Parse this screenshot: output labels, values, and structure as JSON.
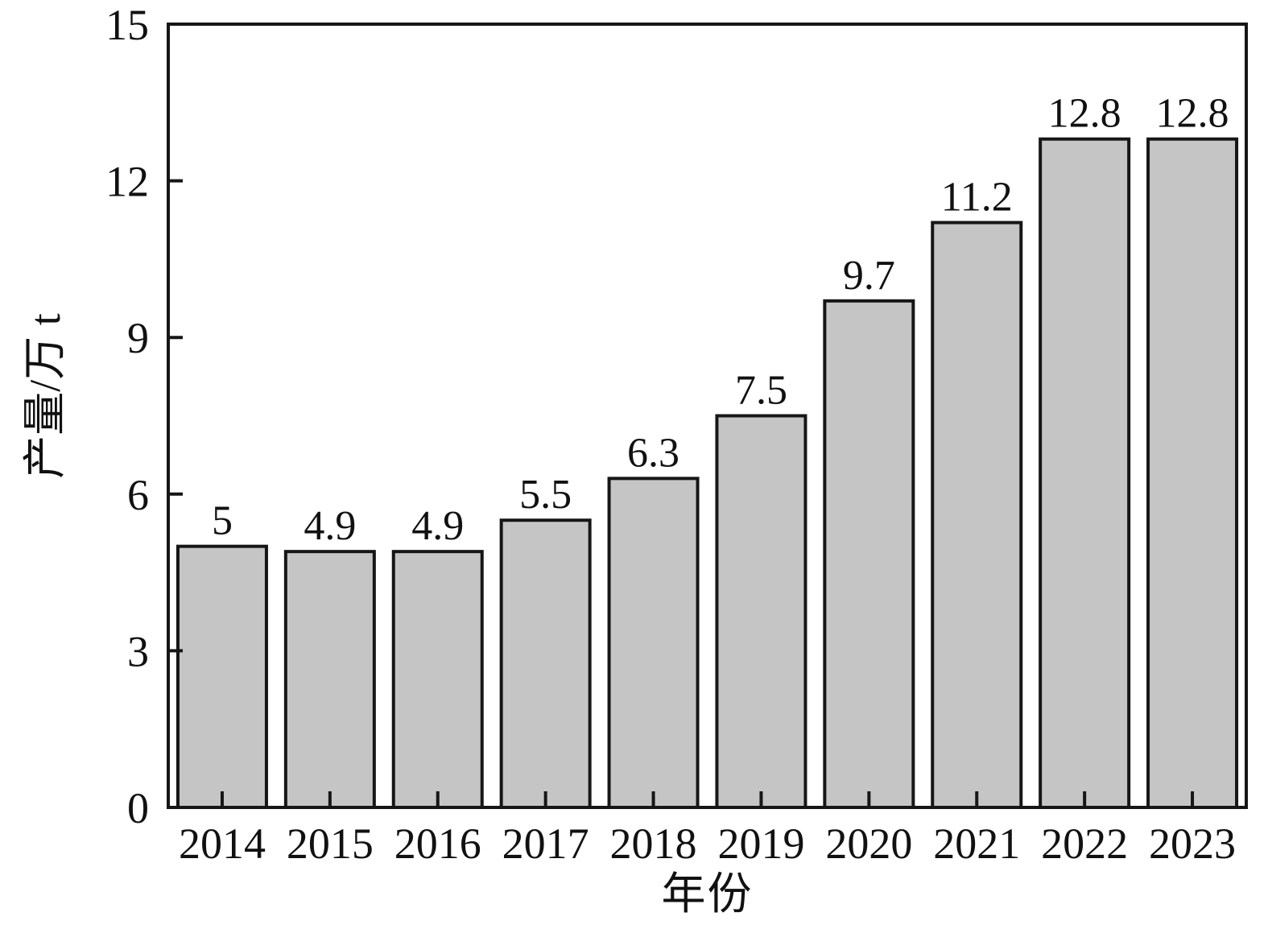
{
  "chart_data": {
    "type": "bar",
    "title": "",
    "categories": [
      "2014",
      "2015",
      "2016",
      "2017",
      "2018",
      "2019",
      "2020",
      "2021",
      "2022",
      "2023"
    ],
    "values": [
      5,
      4.9,
      4.9,
      5.5,
      6.3,
      7.5,
      9.7,
      11.2,
      12.8,
      12.8
    ],
    "value_labels": [
      "5",
      "4.9",
      "4.9",
      "5.5",
      "6.3",
      "7.5",
      "9.7",
      "11.2",
      "12.8",
      "12.8"
    ],
    "xlabel": "年份",
    "ylabel": "产量/万 t",
    "ylim": [
      0,
      15
    ],
    "yticks": [
      0,
      3,
      6,
      9,
      12,
      15
    ],
    "grid": false,
    "legend": "none",
    "colors": {
      "bar_fill": "#c5c5c5",
      "bar_stroke": "#161616",
      "frame_stroke": "#161616",
      "text": "#111111",
      "background": "#ffffff"
    }
  }
}
